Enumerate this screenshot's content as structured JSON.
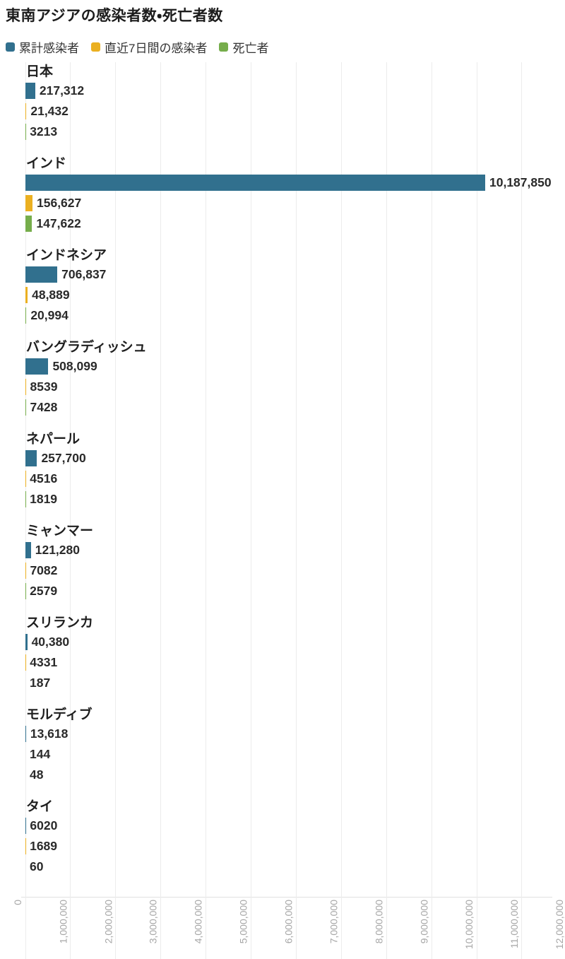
{
  "title": "東南アジアの感染者数・死亡者数",
  "legend": {
    "items": [
      {
        "label": "累計感染者",
        "color": "#31708e",
        "icon": "square-swatch-icon"
      },
      {
        "label": "直近7日間の感染者",
        "color": "#ebb021",
        "icon": "square-swatch-icon"
      },
      {
        "label": "死亡者",
        "color": "#76ad4b",
        "icon": "square-swatch-icon"
      }
    ]
  },
  "chart_data": {
    "type": "bar",
    "orientation": "horizontal",
    "title": "東南アジアの感染者数・死亡者数",
    "grid": true,
    "legend_position": "top",
    "tick_rotation": -90,
    "xlim": [
      0,
      11000000
    ],
    "x_ticks": [
      "0",
      "1,000,000",
      "2,000,000",
      "3,000,000",
      "4,000,000",
      "5,000,000",
      "6,000,000",
      "7,000,000",
      "8,000,000",
      "9,000,000",
      "10,000,000",
      "11,000,000",
      "12,000,000"
    ],
    "categories": [
      "日本",
      "インド",
      "インドネシア",
      "バングラディッシュ",
      "ネパール",
      "ミャンマー",
      "スリランカ",
      "モルディブ",
      "タイ"
    ],
    "series": [
      {
        "name": "累計感染者",
        "color": "#31708e",
        "values": [
          217312,
          10187850,
          706837,
          508099,
          257700,
          121280,
          40380,
          13618,
          6020
        ],
        "labels": [
          "217,312",
          "10,187,850",
          "706,837",
          "508,099",
          "257,700",
          "121,280",
          "40,380",
          "13,618",
          "6020"
        ]
      },
      {
        "name": "直近7日間の感染者",
        "color": "#ebb021",
        "values": [
          21432,
          156627,
          48889,
          8539,
          4516,
          7082,
          4331,
          144,
          1689
        ],
        "labels": [
          "21,432",
          "156,627",
          "48,889",
          "8539",
          "4516",
          "7082",
          "4331",
          "144",
          "1689"
        ]
      },
      {
        "name": "死亡者",
        "color": "#76ad4b",
        "values": [
          3213,
          147622,
          20994,
          7428,
          1819,
          2579,
          187,
          48,
          60
        ],
        "labels": [
          "3213",
          "147,622",
          "20,994",
          "7428",
          "1819",
          "2579",
          "187",
          "48",
          "60"
        ]
      }
    ]
  },
  "colors": {
    "grid": "#ececec",
    "axis": "#e0e0e0",
    "tick_label": "#a6a6a6",
    "value_label": "#2a2a2a",
    "country_label": "#1f1f1f",
    "background": "#ffffff"
  }
}
